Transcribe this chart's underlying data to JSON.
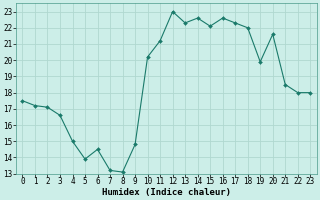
{
  "x": [
    0,
    1,
    2,
    3,
    4,
    5,
    6,
    7,
    8,
    9,
    10,
    11,
    12,
    13,
    14,
    15,
    16,
    17,
    18,
    19,
    20,
    21,
    22,
    23
  ],
  "y": [
    17.5,
    17.2,
    17.1,
    16.6,
    15.0,
    13.9,
    14.5,
    13.2,
    13.1,
    14.8,
    20.2,
    21.2,
    23.0,
    22.3,
    22.6,
    22.1,
    22.6,
    22.3,
    22.0,
    19.9,
    21.6,
    18.5,
    18.0,
    18.0
  ],
  "line_color": "#1a7a6a",
  "marker": "D",
  "marker_size": 2,
  "bg_color": "#cceee8",
  "grid_major_color": "#b0d8d0",
  "grid_minor_color": "#b0d8d0",
  "xlabel": "Humidex (Indice chaleur)",
  "ylim": [
    13,
    23.5
  ],
  "xlim": [
    -0.5,
    23.5
  ],
  "yticks": [
    13,
    14,
    15,
    16,
    17,
    18,
    19,
    20,
    21,
    22,
    23
  ],
  "xticks": [
    0,
    1,
    2,
    3,
    4,
    5,
    6,
    7,
    8,
    9,
    10,
    11,
    12,
    13,
    14,
    15,
    16,
    17,
    18,
    19,
    20,
    21,
    22,
    23
  ],
  "xlabel_fontsize": 6.5,
  "tick_fontsize": 5.5
}
